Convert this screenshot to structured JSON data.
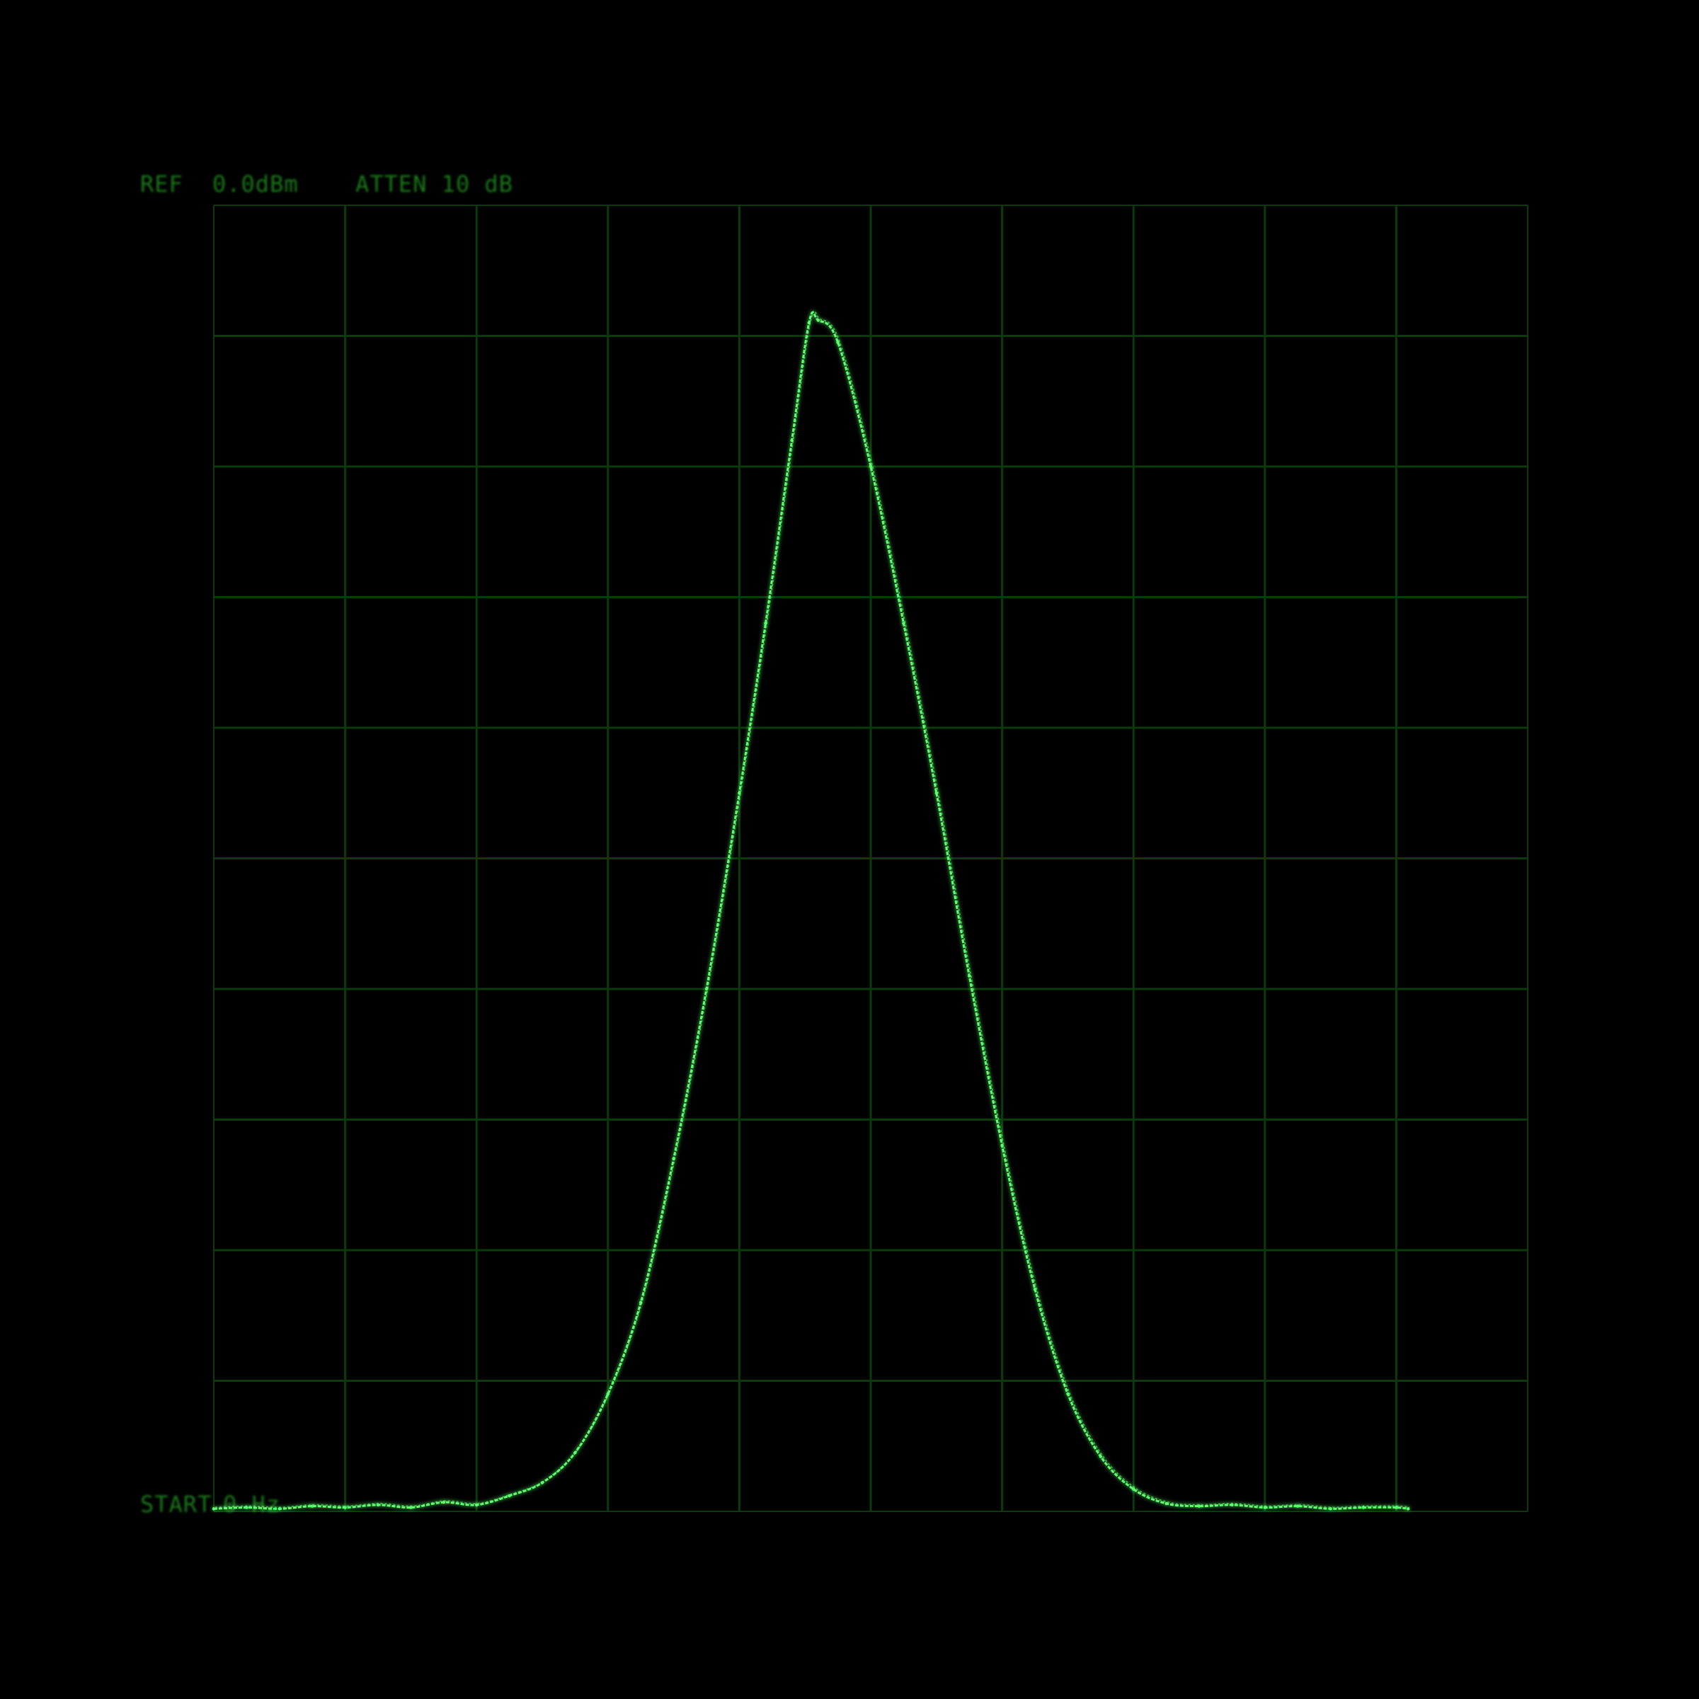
{
  "display": {
    "ref_label": "REF",
    "ref_value": "0.0dBm",
    "atten_label": "ATTEN 10 dB",
    "start_label": "START",
    "start_value": "0 Hz"
  },
  "colors": {
    "background": "#000000",
    "grid": "#0b3a0b",
    "trace": "#5cff6e",
    "text": "#1f7a1f"
  },
  "chart_data": {
    "type": "line",
    "title": "",
    "xlabel": "",
    "ylabel": "",
    "grid": true,
    "divisions": {
      "x": 10,
      "y": 10
    },
    "x_range": [
      0,
      10
    ],
    "y_range": [
      -100,
      0
    ],
    "y_unit_per_division": "10 dB",
    "series": [
      {
        "x": [
          0,
          0.25,
          0.5,
          0.75,
          1.0,
          1.25,
          1.5,
          1.75,
          2.0,
          2.25,
          2.5,
          2.75,
          3.0,
          3.25,
          3.5,
          3.75,
          4.0,
          4.2,
          4.4,
          4.53,
          4.6,
          4.75,
          5.0,
          5.25,
          5.5,
          5.75,
          6.0,
          6.25,
          6.5,
          6.75,
          7.0,
          7.25,
          7.5,
          7.75,
          8.0,
          8.25,
          8.5,
          8.75,
          9.0,
          9.09
        ],
        "y": [
          -99.8,
          -99.7,
          -99.8,
          -99.6,
          -99.7,
          -99.5,
          -99.7,
          -99.3,
          -99.5,
          -98.8,
          -97.8,
          -95.5,
          -91.0,
          -84.0,
          -73.0,
          -60.0,
          -45.0,
          -32.0,
          -18.0,
          -9.0,
          -8.8,
          -10.5,
          -20.0,
          -32.0,
          -45.0,
          -59.0,
          -72.0,
          -83.0,
          -91.0,
          -95.8,
          -98.3,
          -99.4,
          -99.6,
          -99.5,
          -99.7,
          -99.6,
          -99.8,
          -99.7,
          -99.7,
          -99.8
        ]
      }
    ]
  }
}
